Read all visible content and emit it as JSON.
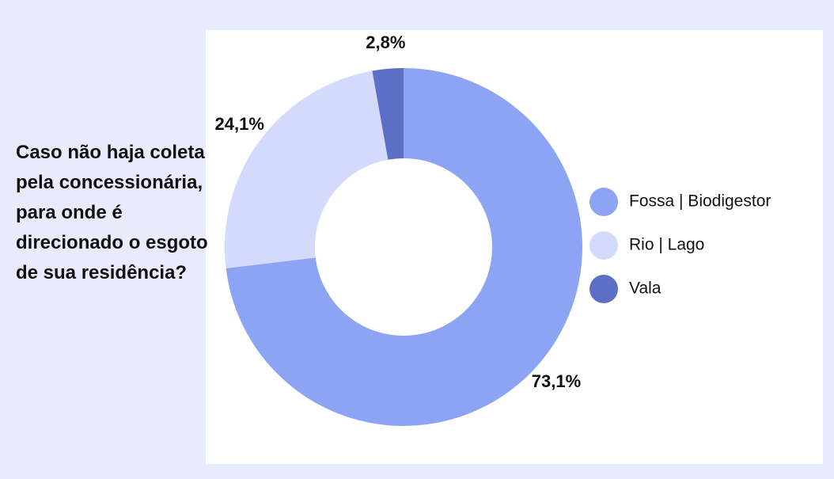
{
  "chart_data": {
    "type": "donut",
    "title": "Caso não haja coleta pela concessionária, para onde é direcionado o esgoto de sua residência?",
    "categories": [
      "Fossa | Biodigestor",
      "Rio | Lago",
      "Vala"
    ],
    "values": [
      73.1,
      24.1,
      2.8
    ],
    "value_labels": [
      "73,1%",
      "24,1%",
      "2,8%"
    ],
    "colors": [
      "#8da4f5",
      "#d3dafc",
      "#5c6fc4"
    ],
    "legend": "right"
  }
}
